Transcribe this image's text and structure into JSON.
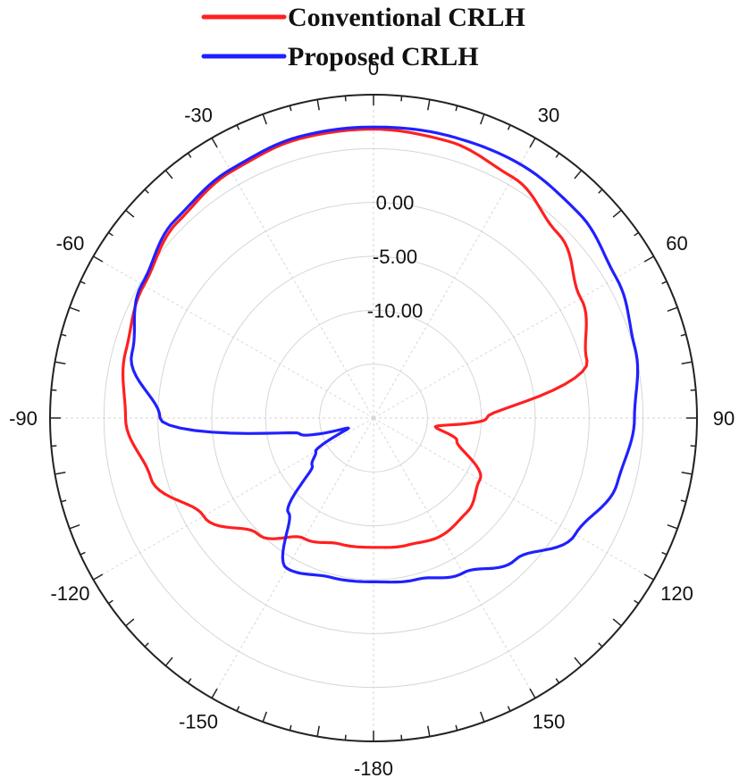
{
  "chart_data": {
    "type": "polar-line",
    "title": "",
    "angle_unit": "degrees",
    "angle_zero": "top",
    "angle_direction": "clockwise",
    "angle_tick_labels": [
      {
        "angle": 0,
        "label": "0"
      },
      {
        "angle": 30,
        "label": "30"
      },
      {
        "angle": 60,
        "label": "60"
      },
      {
        "angle": 90,
        "label": "90"
      },
      {
        "angle": 120,
        "label": "120"
      },
      {
        "angle": 150,
        "label": "150"
      },
      {
        "angle": 180,
        "label": "-180"
      },
      {
        "angle": -150,
        "label": "-150"
      },
      {
        "angle": -120,
        "label": "-120"
      },
      {
        "angle": -90,
        "label": "-90"
      },
      {
        "angle": -60,
        "label": "-60"
      },
      {
        "angle": -30,
        "label": "-30"
      }
    ],
    "radial_range": [
      -20,
      10
    ],
    "radial_grid": [
      -15,
      -10,
      -5,
      0,
      5
    ],
    "radial_tick_labels": [
      {
        "value": 0,
        "label": "0.00"
      },
      {
        "value": -5,
        "label": "-5.00"
      },
      {
        "value": -10,
        "label": "-10.00"
      }
    ],
    "grid": true,
    "legend_position": "top-center",
    "series": [
      {
        "name": "Conventional CRLH",
        "color": "#ff2020",
        "points": [
          [
            0,
            6.8
          ],
          [
            15,
            6.6
          ],
          [
            30,
            5.8
          ],
          [
            45,
            4.2
          ],
          [
            60,
            2.2
          ],
          [
            75,
            0.5
          ],
          [
            90,
            -9.5
          ],
          [
            98,
            -14.2
          ],
          [
            105,
            -12.0
          ],
          [
            120,
            -8.6
          ],
          [
            135,
            -7.7
          ],
          [
            150,
            -7.4
          ],
          [
            165,
            -7.8
          ],
          [
            180,
            -8.0
          ],
          [
            195,
            -7.9
          ],
          [
            210,
            -7.1
          ],
          [
            225,
            -4.8
          ],
          [
            240,
            -1.8
          ],
          [
            255,
            1.4
          ],
          [
            270,
            3.0
          ],
          [
            285,
            3.8
          ],
          [
            300,
            4.6
          ],
          [
            315,
            5.7
          ],
          [
            330,
            6.4
          ],
          [
            345,
            6.8
          ],
          [
            360,
            6.8
          ]
        ]
      },
      {
        "name": "Proposed CRLH",
        "color": "#2020ff",
        "points": [
          [
            0,
            7.0
          ],
          [
            15,
            7.1
          ],
          [
            30,
            7.2
          ],
          [
            45,
            6.9
          ],
          [
            60,
            6.0
          ],
          [
            75,
            5.1
          ],
          [
            90,
            4.2
          ],
          [
            105,
            3.4
          ],
          [
            120,
            1.6
          ],
          [
            135,
            -1.4
          ],
          [
            150,
            -3.4
          ],
          [
            165,
            -4.5
          ],
          [
            180,
            -4.8
          ],
          [
            195,
            -4.7
          ],
          [
            210,
            -3.9
          ],
          [
            222,
            -8.2
          ],
          [
            232,
            -12.8
          ],
          [
            240,
            -13.8
          ],
          [
            248,
            -17.5
          ],
          [
            258,
            -13.0
          ],
          [
            270,
            -0.2
          ],
          [
            285,
            3.2
          ],
          [
            300,
            4.8
          ],
          [
            315,
            6.0
          ],
          [
            330,
            6.6
          ],
          [
            345,
            7.0
          ],
          [
            360,
            7.0
          ]
        ]
      }
    ]
  }
}
